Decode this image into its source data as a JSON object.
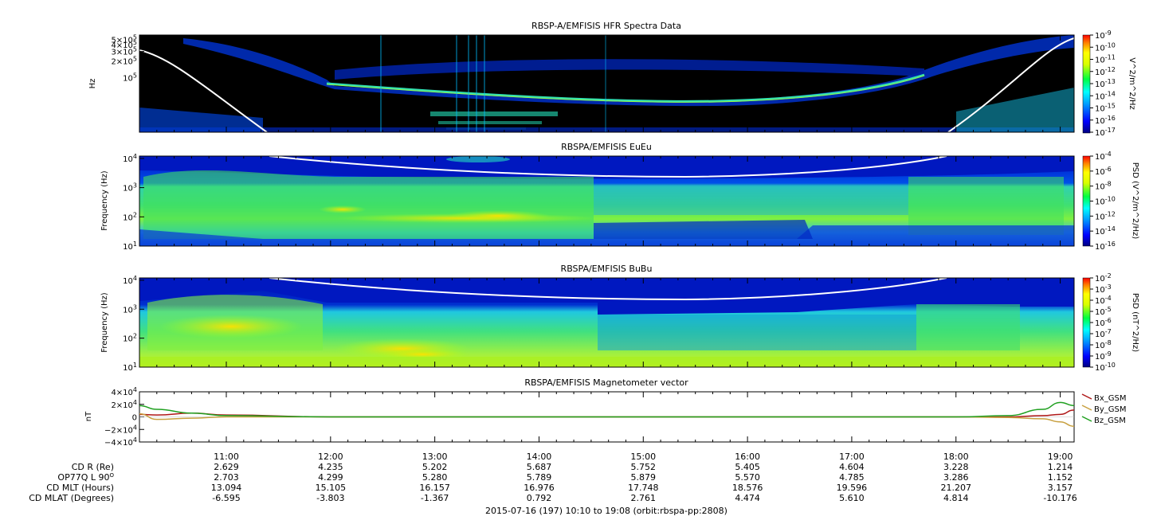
{
  "chart_data": [
    {
      "type": "heatmap",
      "title": "RBSP-A/EMFISIS  HFR Spectra Data",
      "ylabel": "Hz",
      "yticks": [
        {
          "text": "5×10",
          "exp": "5"
        },
        {
          "text": "4×10",
          "exp": "5"
        },
        {
          "text": "3×10",
          "exp": "5"
        },
        {
          "text": "2×10",
          "exp": "5"
        },
        {
          "text": "10",
          "exp": "5"
        }
      ],
      "ytick_values": [
        500000,
        400000,
        300000,
        200000,
        100000
      ],
      "ylim": [
        10000,
        600000
      ],
      "colorbar": {
        "label": "V^2/m^2/Hz",
        "ticks": [
          "-9",
          "-10",
          "-11",
          "-12",
          "-13",
          "-14",
          "-15",
          "-16",
          "-17"
        ],
        "base": "10"
      }
    },
    {
      "type": "heatmap",
      "title": "RBSPA/EMFISIS  EuEu",
      "ylabel": "Frequency (Hz)",
      "yticks": [
        {
          "text": "10",
          "exp": "4"
        },
        {
          "text": "10",
          "exp": "3"
        },
        {
          "text": "10",
          "exp": "2"
        },
        {
          "text": "10",
          "exp": "1"
        }
      ],
      "ytick_values": [
        10000,
        1000,
        100,
        10
      ],
      "ylim": [
        10,
        12000
      ],
      "colorbar": {
        "label": "PSD (V^2/m^2/Hz)",
        "ticks": [
          "-4",
          "-6",
          "-8",
          "-10",
          "-12",
          "-14",
          "-16"
        ],
        "base": "10"
      }
    },
    {
      "type": "heatmap",
      "title": "RBSPA/EMFISIS  BuBu",
      "ylabel": "Frequency (Hz)",
      "yticks": [
        {
          "text": "10",
          "exp": "4"
        },
        {
          "text": "10",
          "exp": "3"
        },
        {
          "text": "10",
          "exp": "2"
        },
        {
          "text": "10",
          "exp": "1"
        }
      ],
      "ytick_values": [
        10000,
        1000,
        100,
        10
      ],
      "ylim": [
        10,
        12000
      ],
      "colorbar": {
        "label": "PSD (nT^2/Hz)",
        "ticks": [
          "-2",
          "-3",
          "-4",
          "-5",
          "-6",
          "-7",
          "-8",
          "-9",
          "-10"
        ],
        "base": "10"
      }
    },
    {
      "type": "line",
      "title": "RBSPA/EMFISIS  Magnetometer vector",
      "ylabel": "nT",
      "yticks": [
        {
          "text": "4×10",
          "exp": "4"
        },
        {
          "text": "2×10",
          "exp": "4"
        },
        {
          "text": "0",
          "exp": ""
        },
        {
          "text": "−2×10",
          "exp": "4"
        },
        {
          "text": "−4×10",
          "exp": "4"
        }
      ],
      "ytick_values": [
        40000,
        20000,
        0,
        -20000,
        -40000
      ],
      "ylim": [
        -40000,
        40000
      ],
      "x": [
        "10:10",
        "10:20",
        "10:40",
        "11:00",
        "12:00",
        "14:00",
        "16:00",
        "18:00",
        "18:30",
        "18:50",
        "19:00",
        "19:08"
      ],
      "series": [
        {
          "name": "Bx_GSM",
          "color": "#b01818",
          "values": [
            4000,
            3000,
            6000,
            3000,
            0,
            0,
            0,
            0,
            0,
            2000,
            4000,
            11000
          ]
        },
        {
          "name": "By_GSM",
          "color": "#c8a040",
          "values": [
            5000,
            -4000,
            -2000,
            0,
            0,
            0,
            0,
            0,
            -1000,
            -3000,
            -8000,
            -15000
          ]
        },
        {
          "name": "Bz_GSM",
          "color": "#20a020",
          "values": [
            18000,
            12000,
            6000,
            2000,
            0,
            0,
            0,
            0,
            2000,
            12000,
            23000,
            18000
          ]
        }
      ]
    }
  ],
  "time_axis": {
    "ticks": [
      "11:00",
      "12:00",
      "13:00",
      "14:00",
      "15:00",
      "16:00",
      "17:00",
      "18:00",
      "19:00"
    ],
    "start": "10:10",
    "end": "19:08"
  },
  "ephemeris": {
    "rows": [
      {
        "label": "CD R (Re)",
        "values": [
          "2.629",
          "4.235",
          "5.202",
          "5.687",
          "5.752",
          "5.405",
          "4.604",
          "3.228",
          "1.214"
        ]
      },
      {
        "label": "OP77Q L 90",
        "sup": "O",
        "values": [
          "2.703",
          "4.299",
          "5.280",
          "5.789",
          "5.879",
          "5.570",
          "4.785",
          "3.286",
          "1.152"
        ]
      },
      {
        "label": "CD MLT (Hours)",
        "values": [
          "13.094",
          "15.105",
          "16.157",
          "16.976",
          "17.748",
          "18.576",
          "19.596",
          "21.207",
          "3.157"
        ]
      },
      {
        "label": "CD MLAT (Degrees)",
        "values": [
          "-6.595",
          "-3.803",
          "-1.367",
          "0.792",
          "2.761",
          "4.474",
          "5.610",
          "4.814",
          "-10.176"
        ]
      }
    ]
  },
  "footer": "2015-07-16 (197) 10:10 to 19:08 (orbit:rbspa-pp:2808)"
}
